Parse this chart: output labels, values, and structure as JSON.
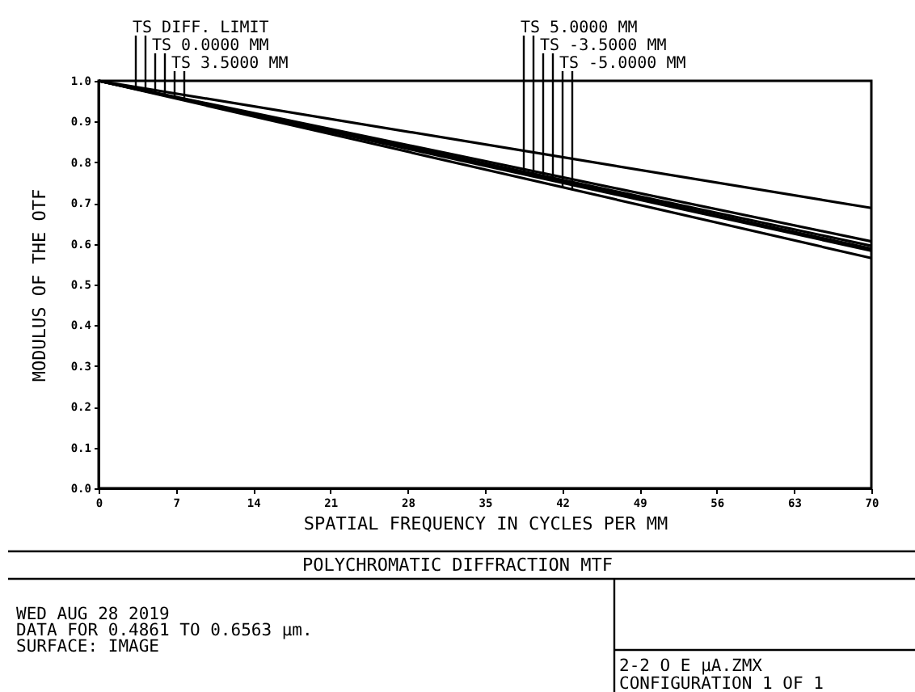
{
  "chart_data": {
    "type": "line",
    "title": "POLYCHROMATIC DIFFRACTION MTF",
    "xlabel": "SPATIAL FREQUENCY IN CYCLES PER MM",
    "ylabel": "MODULUS OF THE OTF",
    "x": [
      0,
      70
    ],
    "series": [
      {
        "name": "TS DIFF. LIMIT",
        "color": "#000000",
        "values": [
          1.0,
          0.688
        ]
      },
      {
        "name": "TS 0.0000 MM",
        "color": "#000000",
        "values": [
          1.0,
          0.606
        ]
      },
      {
        "name": "TS 3.5000 MM",
        "color": "#000000",
        "values": [
          1.0,
          0.595
        ]
      },
      {
        "name": "TS 5.0000 MM",
        "color": "#000000",
        "values": [
          1.0,
          0.588
        ]
      },
      {
        "name": "TS -3.5000 MM",
        "color": "#000000",
        "values": [
          1.0,
          0.583
        ]
      },
      {
        "name": "TS -5.0000 MM",
        "color": "#000000",
        "values": [
          1.0,
          0.565
        ]
      }
    ],
    "xlim": [
      0,
      70
    ],
    "xticks": [
      0,
      7,
      14,
      21,
      28,
      35,
      42,
      49,
      56,
      63,
      70
    ],
    "ylim": [
      0,
      1
    ],
    "yticks": [
      {
        "value": 0,
        "label": "0.0"
      },
      0.1,
      0.2,
      0.3,
      0.4,
      0.5,
      0.6,
      0.7,
      0.8,
      0.9,
      {
        "value": 1,
        "label": "1.0"
      }
    ],
    "grid": false,
    "marker": "none",
    "line_style": "solid",
    "annotations": [
      "WED AUG 28 2019",
      "DATA FOR 0.4861 TO 0.6563 µm.",
      "SURFACE: IMAGE",
      "2-2 O    E   µA.ZMX",
      "CONFIGURATION 1 OF 1"
    ]
  }
}
